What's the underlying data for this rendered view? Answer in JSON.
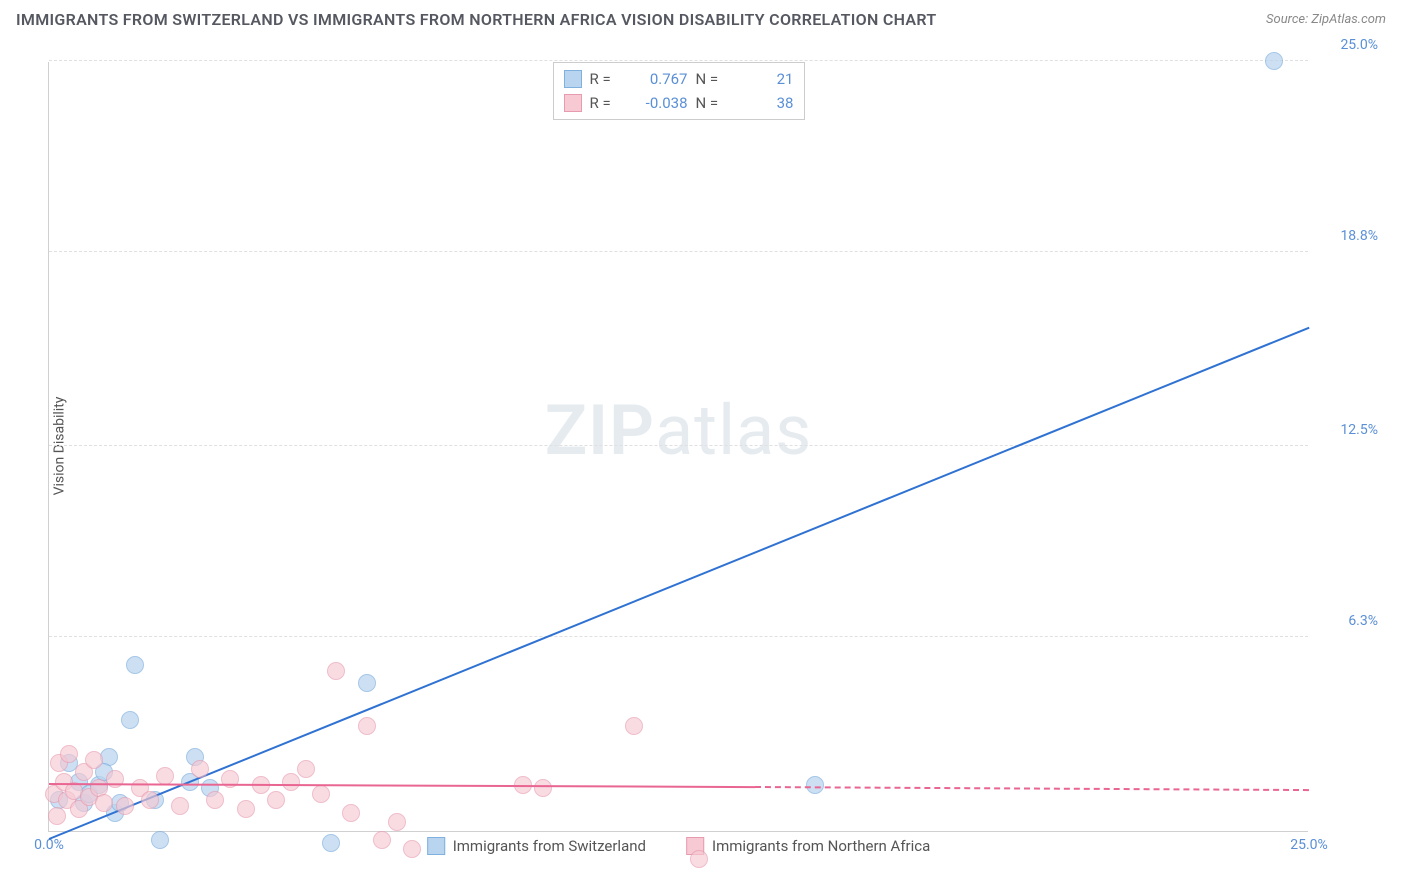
{
  "title": "IMMIGRANTS FROM SWITZERLAND VS IMMIGRANTS FROM NORTHERN AFRICA VISION DISABILITY CORRELATION CHART",
  "source": "Source: ZipAtlas.com",
  "y_axis_label": "Vision Disability",
  "watermark": {
    "bold": "ZIP",
    "rest": "atlas"
  },
  "chart": {
    "type": "scatter",
    "xlim": [
      0,
      25
    ],
    "ylim": [
      0,
      25
    ],
    "x_ticks": [
      {
        "v": 0,
        "l": "0.0%"
      },
      {
        "v": 25,
        "l": "25.0%"
      }
    ],
    "y_ticks": [
      {
        "v": 6.3,
        "l": "6.3%"
      },
      {
        "v": 12.5,
        "l": "12.5%"
      },
      {
        "v": 18.8,
        "l": "18.8%"
      },
      {
        "v": 25,
        "l": "25.0%"
      }
    ],
    "gridline_color": "#e0e0e0",
    "background_color": "#ffffff",
    "axis_color": "#d0d0d0",
    "tick_color": "#5a8fd6",
    "series": [
      {
        "name": "Immigrants from Switzerland",
        "fill_color": "#b9d4ee",
        "stroke_color": "#7fb0de",
        "line_color": "#2f72d2",
        "marker_radius": 9,
        "marker_opacity": 0.7,
        "R": "0.767",
        "N": "21",
        "trend": {
          "x1": 0,
          "y1": -0.3,
          "x2": 25,
          "y2": 16.3
        },
        "points": [
          {
            "x": 0.2,
            "y": 1.0
          },
          {
            "x": 0.4,
            "y": 2.2
          },
          {
            "x": 0.6,
            "y": 1.6
          },
          {
            "x": 0.7,
            "y": 0.9
          },
          {
            "x": 0.8,
            "y": 1.2
          },
          {
            "x": 1.0,
            "y": 1.5
          },
          {
            "x": 1.2,
            "y": 2.4
          },
          {
            "x": 1.3,
            "y": 0.6
          },
          {
            "x": 1.4,
            "y": 0.9
          },
          {
            "x": 1.6,
            "y": 3.6
          },
          {
            "x": 1.7,
            "y": 5.4
          },
          {
            "x": 2.1,
            "y": 1.0
          },
          {
            "x": 2.2,
            "y": -0.3
          },
          {
            "x": 2.8,
            "y": 1.6
          },
          {
            "x": 2.9,
            "y": 2.4
          },
          {
            "x": 3.2,
            "y": 1.4
          },
          {
            "x": 5.6,
            "y": -0.4
          },
          {
            "x": 6.3,
            "y": 4.8
          },
          {
            "x": 15.2,
            "y": 1.5
          },
          {
            "x": 24.3,
            "y": 25.0
          },
          {
            "x": 1.1,
            "y": 1.9
          }
        ]
      },
      {
        "name": "Immigrants from Northern Africa",
        "fill_color": "#f6c9d3",
        "stroke_color": "#e79bb0",
        "line_color": "#e96693",
        "marker_radius": 9,
        "marker_opacity": 0.65,
        "R": "-0.038",
        "N": "38",
        "trend": {
          "x1": 0,
          "y1": 1.5,
          "x2": 14.0,
          "y2": 1.4
        },
        "trend_dash": {
          "x1": 14.0,
          "y1": 1.4,
          "x2": 25,
          "y2": 1.3
        },
        "points": [
          {
            "x": 0.1,
            "y": 1.2
          },
          {
            "x": 0.2,
            "y": 2.2
          },
          {
            "x": 0.3,
            "y": 1.6
          },
          {
            "x": 0.35,
            "y": 1.0
          },
          {
            "x": 0.4,
            "y": 2.5
          },
          {
            "x": 0.5,
            "y": 1.3
          },
          {
            "x": 0.6,
            "y": 0.7
          },
          {
            "x": 0.7,
            "y": 1.9
          },
          {
            "x": 0.8,
            "y": 1.1
          },
          {
            "x": 0.9,
            "y": 2.3
          },
          {
            "x": 1.0,
            "y": 1.4
          },
          {
            "x": 1.1,
            "y": 0.9
          },
          {
            "x": 1.3,
            "y": 1.7
          },
          {
            "x": 1.5,
            "y": 0.8
          },
          {
            "x": 1.8,
            "y": 1.4
          },
          {
            "x": 2.0,
            "y": 1.0
          },
          {
            "x": 2.3,
            "y": 1.8
          },
          {
            "x": 2.6,
            "y": 0.8
          },
          {
            "x": 3.0,
            "y": 2.0
          },
          {
            "x": 3.3,
            "y": 1.0
          },
          {
            "x": 3.6,
            "y": 1.7
          },
          {
            "x": 3.9,
            "y": 0.7
          },
          {
            "x": 4.2,
            "y": 1.5
          },
          {
            "x": 4.5,
            "y": 1.0
          },
          {
            "x": 4.8,
            "y": 1.6
          },
          {
            "x": 5.4,
            "y": 1.2
          },
          {
            "x": 5.7,
            "y": 5.2
          },
          {
            "x": 6.0,
            "y": 0.6
          },
          {
            "x": 6.3,
            "y": 3.4
          },
          {
            "x": 6.6,
            "y": -0.3
          },
          {
            "x": 6.9,
            "y": 0.3
          },
          {
            "x": 7.2,
            "y": -0.6
          },
          {
            "x": 9.4,
            "y": 1.5
          },
          {
            "x": 9.8,
            "y": 1.4
          },
          {
            "x": 11.6,
            "y": 3.4
          },
          {
            "x": 12.9,
            "y": -0.9
          },
          {
            "x": 5.1,
            "y": 2.0
          },
          {
            "x": 0.15,
            "y": 0.5
          }
        ]
      }
    ]
  },
  "legend_top_labels": {
    "R": "R =",
    "N": "N ="
  },
  "legend_bottom": [
    {
      "swatch_fill": "#b9d4ee",
      "swatch_stroke": "#7fb0de",
      "label": "Immigrants from Switzerland"
    },
    {
      "swatch_fill": "#f6c9d3",
      "swatch_stroke": "#e79bb0",
      "label": "Immigrants from Northern Africa"
    }
  ]
}
